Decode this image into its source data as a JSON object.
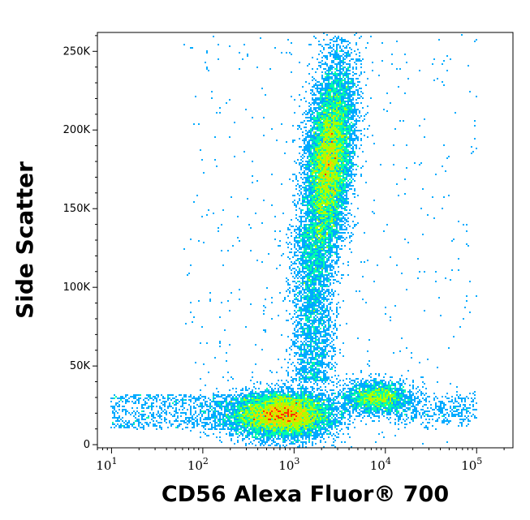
{
  "chart_data": {
    "type": "scatter",
    "title": "",
    "xlabel": "CD56 Alexa Fluor® 700",
    "ylabel": "Side Scatter",
    "x_scale": "log",
    "xlim": [
      7,
      250000
    ],
    "ylim": [
      -2000,
      262000
    ],
    "x_ticks": [
      {
        "value": 10,
        "base": "10",
        "exp": "1"
      },
      {
        "value": 100,
        "base": "10",
        "exp": "2"
      },
      {
        "value": 1000,
        "base": "10",
        "exp": "3"
      },
      {
        "value": 10000,
        "base": "10",
        "exp": "4"
      },
      {
        "value": 100000,
        "base": "10",
        "exp": "5"
      }
    ],
    "y_ticks": [
      {
        "value": 0,
        "label": "0"
      },
      {
        "value": 50000,
        "label": "50K"
      },
      {
        "value": 100000,
        "label": "100K"
      },
      {
        "value": 150000,
        "label": "150K"
      },
      {
        "value": 200000,
        "label": "200K"
      },
      {
        "value": 250000,
        "label": "250K"
      }
    ],
    "color_scale": [
      "#0000ff",
      "#00aaff",
      "#00ffaa",
      "#aaff00",
      "#ffcc00",
      "#ff3300"
    ],
    "populations": [
      {
        "name_hidden": true,
        "center_x": 750,
        "center_y": 19000,
        "spread_log_x": 0.28,
        "spread_y": 7000,
        "density": "high"
      },
      {
        "name_hidden": true,
        "center_x": 2400,
        "center_y": 180000,
        "spread_log_x": 0.13,
        "spread_y": 30000,
        "density": "high"
      },
      {
        "name_hidden": true,
        "center_x": 8000,
        "center_y": 30000,
        "spread_log_x": 0.18,
        "spread_y": 5000,
        "density": "medium"
      },
      {
        "name_hidden": true,
        "center_x": 1600,
        "center_y": 80000,
        "spread_log_x": 0.12,
        "spread_y": 25000,
        "density": "low"
      }
    ]
  }
}
